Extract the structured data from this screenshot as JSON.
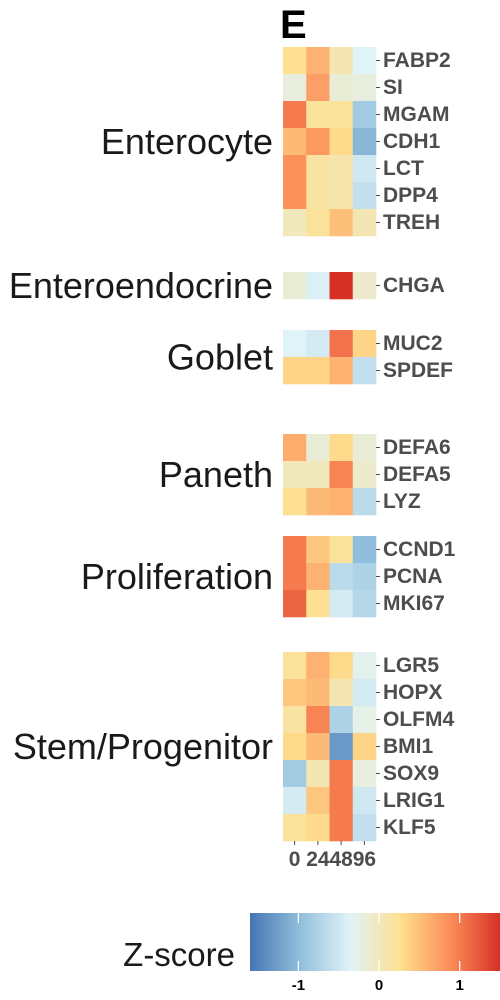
{
  "panel_label": "E",
  "chart_data": {
    "type": "heatmap",
    "x": [
      "0",
      "24",
      "48",
      "96"
    ],
    "groups": [
      {
        "name": "Enterocyte",
        "rows": [
          {
            "gene": "FABP2",
            "values": [
              0.25,
              0.6,
              0.05,
              -0.35
            ]
          },
          {
            "gene": "SI",
            "values": [
              -0.2,
              0.75,
              -0.15,
              -0.2
            ]
          },
          {
            "gene": "MGAM",
            "values": [
              1.0,
              0.2,
              0.2,
              -0.85
            ]
          },
          {
            "gene": "CDH1",
            "values": [
              0.55,
              0.8,
              0.3,
              -1.05
            ]
          },
          {
            "gene": "LCT",
            "values": [
              0.85,
              0.15,
              0.1,
              -0.5
            ]
          },
          {
            "gene": "DPP4",
            "values": [
              0.85,
              0.15,
              0.1,
              -0.6
            ]
          },
          {
            "gene": "TREH",
            "values": [
              0.0,
              0.2,
              0.5,
              0.05
            ]
          }
        ]
      },
      {
        "name": "Enteroendocrine",
        "rows": [
          {
            "gene": "CHGA",
            "values": [
              -0.15,
              -0.4,
              1.5,
              -0.1
            ]
          }
        ]
      },
      {
        "name": "Goblet",
        "rows": [
          {
            "gene": "MUC2",
            "values": [
              -0.35,
              -0.45,
              1.05,
              0.35
            ]
          },
          {
            "gene": "SPDEF",
            "values": [
              0.35,
              0.35,
              0.6,
              -0.6
            ]
          }
        ]
      },
      {
        "name": "Paneth",
        "rows": [
          {
            "gene": "DEFA6",
            "values": [
              0.65,
              -0.15,
              0.3,
              -0.15
            ]
          },
          {
            "gene": "DEFA5",
            "values": [
              0.0,
              0.0,
              0.95,
              -0.1
            ]
          },
          {
            "gene": "LYZ",
            "values": [
              0.25,
              0.55,
              0.6,
              -0.65
            ]
          }
        ]
      },
      {
        "name": "Proliferation",
        "rows": [
          {
            "gene": "CCND1",
            "values": [
              1.0,
              0.45,
              0.2,
              -1.0
            ]
          },
          {
            "gene": "PCNA",
            "values": [
              1.0,
              0.6,
              -0.65,
              -0.75
            ]
          },
          {
            "gene": "MKI67",
            "values": [
              1.15,
              0.25,
              -0.45,
              -0.7
            ]
          }
        ]
      },
      {
        "name": "Stem/Progenitor",
        "rows": [
          {
            "gene": "LGR5",
            "values": [
              0.2,
              0.6,
              0.3,
              -0.3
            ]
          },
          {
            "gene": "HOPX",
            "values": [
              0.45,
              0.55,
              0.05,
              -0.45
            ]
          },
          {
            "gene": "OLFM4",
            "values": [
              0.15,
              0.95,
              -0.75,
              -0.25
            ]
          },
          {
            "gene": "BMI1",
            "values": [
              0.3,
              0.55,
              -1.3,
              0.35
            ]
          },
          {
            "gene": "SOX9",
            "values": [
              -0.85,
              0.05,
              1.0,
              -0.2
            ]
          },
          {
            "gene": "LRIG1",
            "values": [
              -0.45,
              0.45,
              1.0,
              -0.5
            ]
          },
          {
            "gene": "KLF5",
            "values": [
              0.2,
              0.3,
              1.0,
              -0.6
            ]
          }
        ]
      }
    ],
    "legend": {
      "title": "Z-score",
      "ticks": [
        -1,
        0,
        1
      ],
      "range": [
        -1.6,
        1.5
      ],
      "colors": [
        "#4575b4",
        "#91bfdb",
        "#e0f3f8",
        "#fee090",
        "#fc8d59",
        "#d73027"
      ]
    }
  }
}
